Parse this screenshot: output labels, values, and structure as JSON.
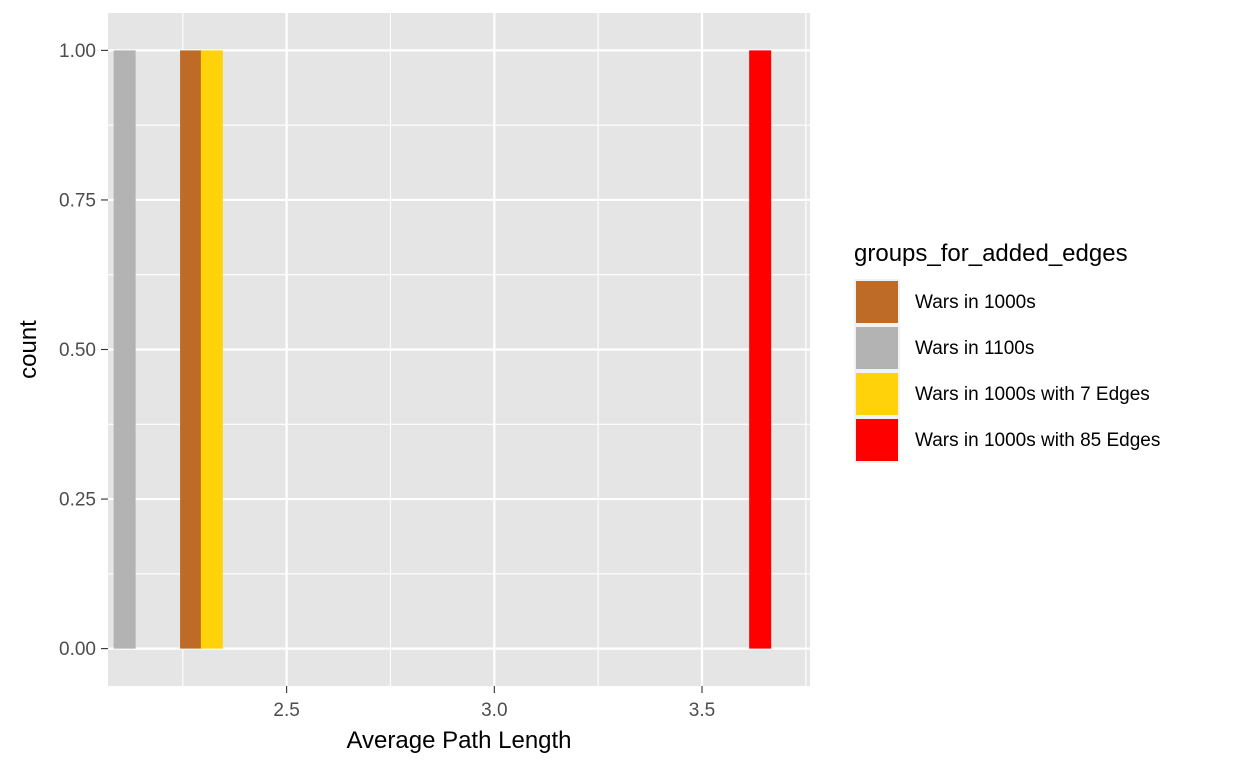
{
  "chart_data": {
    "type": "bar",
    "title": "",
    "xlabel": "Average Path Length",
    "ylabel": "count",
    "xlim": [
      2.07,
      3.76
    ],
    "ylim": [
      -0.0625,
      1.0625
    ],
    "x_ticks": [
      2.5,
      3.0,
      3.5
    ],
    "x_tick_labels": [
      "2.5",
      "3.0",
      "3.5"
    ],
    "y_ticks": [
      0,
      0.25,
      0.5,
      0.75,
      1.0
    ],
    "y_tick_labels": [
      "0.00",
      "0.25",
      "0.50",
      "0.75",
      "1.00"
    ],
    "grid": true,
    "bin_width": 0.053,
    "legend": {
      "title": "groups_for_added_edges",
      "placement": "right"
    },
    "series": [
      {
        "name": "Wars in 1000s",
        "color": "#BF6B28",
        "bins": [
          {
            "x": 2.27,
            "count": 1
          }
        ]
      },
      {
        "name": "Wars in 1100s",
        "color": "#B3B3B3",
        "bins": [
          {
            "x": 2.11,
            "count": 1
          }
        ]
      },
      {
        "name": "Wars in 1000s with 7 Edges",
        "color": "#FFD20A",
        "bins": [
          {
            "x": 2.32,
            "count": 1
          }
        ]
      },
      {
        "name": "Wars in 1000s with 85 Edges",
        "color": "#FF0000",
        "bins": [
          {
            "x": 3.64,
            "count": 1
          }
        ]
      }
    ],
    "colors": {
      "panel_background": "#E5E5E5",
      "grid_line": "#FFFFFF",
      "tick_mark": "#333333"
    }
  }
}
